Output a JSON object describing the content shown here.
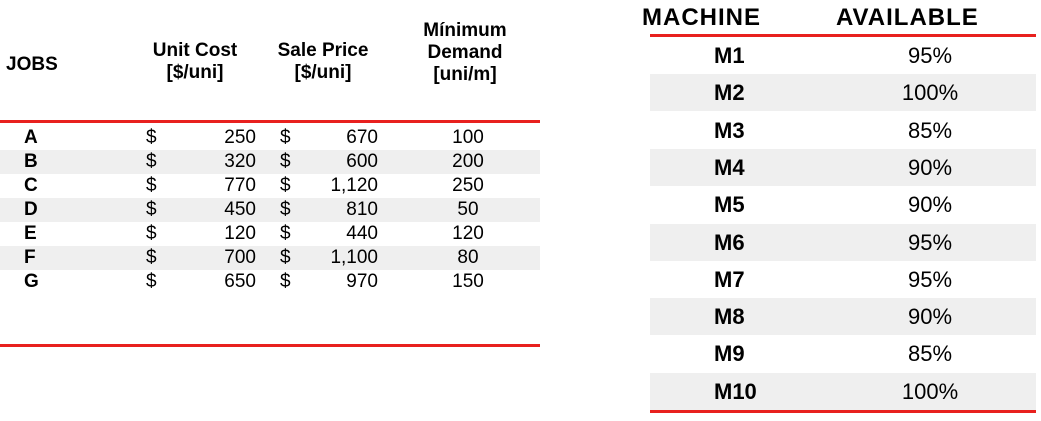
{
  "jobs_table": {
    "headers": {
      "jobs": "JOBS",
      "unit_cost": [
        "Unit Cost",
        "[$/uni]"
      ],
      "sale_price": [
        "Sale Price",
        "[$/uni]"
      ],
      "minimum_demand": [
        "Mínimum",
        "Demand",
        "[uni/m]"
      ]
    },
    "currency_symbol": "$",
    "rows": [
      {
        "job": "A",
        "unit_cost": "250",
        "sale_price": "670",
        "demand": "100"
      },
      {
        "job": "B",
        "unit_cost": "320",
        "sale_price": "600",
        "demand": "200"
      },
      {
        "job": "C",
        "unit_cost": "770",
        "sale_price": "1,120",
        "demand": "250"
      },
      {
        "job": "D",
        "unit_cost": "450",
        "sale_price": "810",
        "demand": "50"
      },
      {
        "job": "E",
        "unit_cost": "120",
        "sale_price": "440",
        "demand": "120"
      },
      {
        "job": "F",
        "unit_cost": "700",
        "sale_price": "1,100",
        "demand": "80"
      },
      {
        "job": "G",
        "unit_cost": "650",
        "sale_price": "970",
        "demand": "150"
      }
    ]
  },
  "machine_table": {
    "headers": {
      "machine": "MACHINE",
      "available": "AVAILABLE"
    },
    "rows": [
      {
        "machine": "M1",
        "available": "95%"
      },
      {
        "machine": "M2",
        "available": "100%"
      },
      {
        "machine": "M3",
        "available": "85%"
      },
      {
        "machine": "M4",
        "available": "90%"
      },
      {
        "machine": "M5",
        "available": "90%"
      },
      {
        "machine": "M6",
        "available": "95%"
      },
      {
        "machine": "M7",
        "available": "95%"
      },
      {
        "machine": "M8",
        "available": "90%"
      },
      {
        "machine": "M9",
        "available": "85%"
      },
      {
        "machine": "M10",
        "available": "100%"
      }
    ]
  },
  "colors": {
    "rule": "#e8201e",
    "row_shade": "#efefef"
  }
}
